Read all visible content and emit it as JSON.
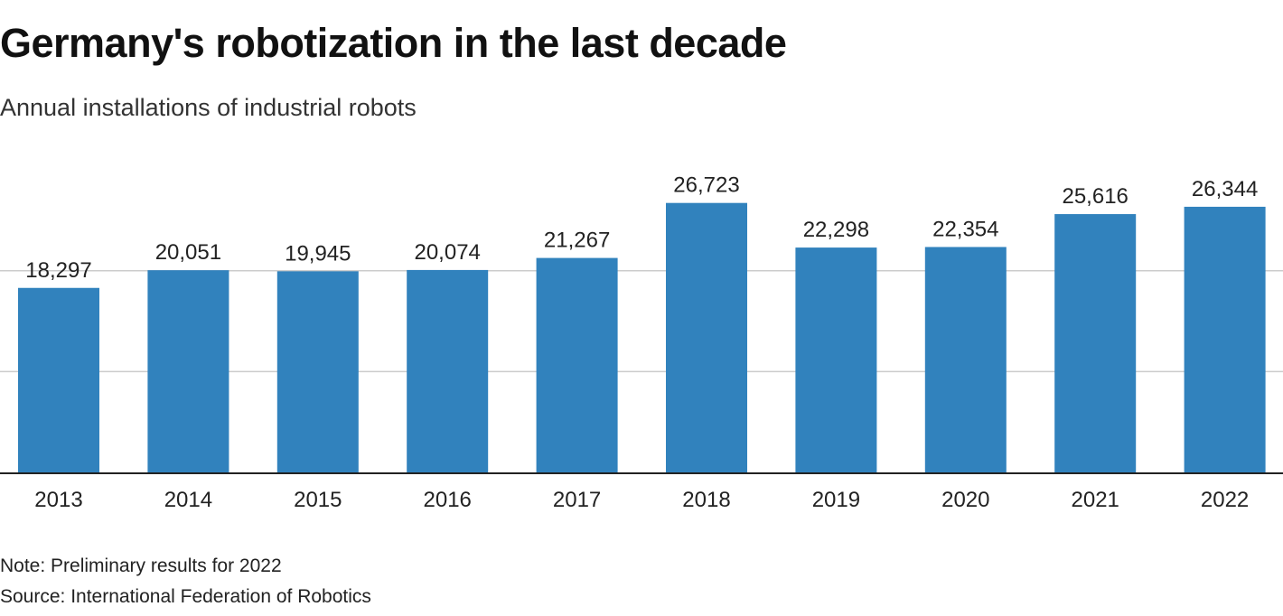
{
  "header": {
    "title": "Germany's robotization in the last decade",
    "subtitle": "Annual installations of industrial robots"
  },
  "footer": {
    "note": "Note: Preliminary results for 2022",
    "source": "Source: International Federation of Robotics"
  },
  "colors": {
    "bar": "#3182bd",
    "grid": "#cccccc",
    "axis": "#222222"
  },
  "chart_data": {
    "type": "bar",
    "categories": [
      "2013",
      "2014",
      "2015",
      "2016",
      "2017",
      "2018",
      "2019",
      "2020",
      "2021",
      "2022"
    ],
    "values": [
      18297,
      20051,
      19945,
      20074,
      21267,
      26723,
      22298,
      22354,
      25616,
      26344
    ],
    "value_labels": [
      "18,297",
      "20,051",
      "19,945",
      "20,074",
      "21,267",
      "26,723",
      "22,298",
      "22,354",
      "25,616",
      "26,344"
    ],
    "title": "Germany's robotization in the last decade",
    "subtitle": "Annual installations of industrial robots",
    "xlabel": "",
    "ylabel": "",
    "ylim": [
      0,
      30000
    ],
    "gridlines": [
      10000,
      20000
    ],
    "grid": true,
    "legend": "none"
  }
}
